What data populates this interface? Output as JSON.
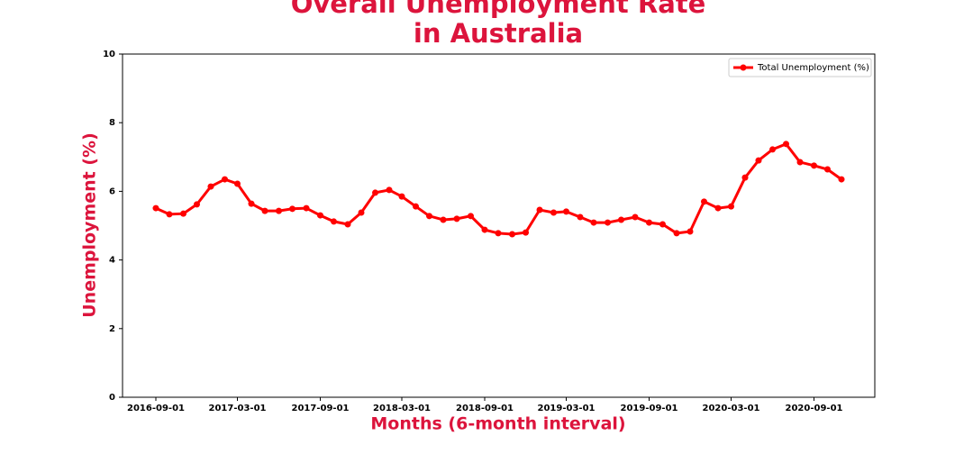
{
  "chart_data": {
    "type": "line",
    "title": "Overall Unemployment Rate in Australia",
    "x_label": "Months (6-month interval)",
    "y_label": "Unemployment (%)",
    "x": [
      "2016-09-01",
      "2016-10-01",
      "2016-11-01",
      "2016-12-01",
      "2017-01-01",
      "2017-02-01",
      "2017-03-01",
      "2017-04-01",
      "2017-05-01",
      "2017-06-01",
      "2017-07-01",
      "2017-08-01",
      "2017-09-01",
      "2017-10-01",
      "2017-11-01",
      "2017-12-01",
      "2018-01-01",
      "2018-02-01",
      "2018-03-01",
      "2018-04-01",
      "2018-05-01",
      "2018-06-01",
      "2018-07-01",
      "2018-08-01",
      "2018-09-01",
      "2018-10-01",
      "2018-11-01",
      "2018-12-01",
      "2019-01-01",
      "2019-02-01",
      "2019-03-01",
      "2019-04-01",
      "2019-05-01",
      "2019-06-01",
      "2019-07-01",
      "2019-08-01",
      "2019-09-01",
      "2019-10-01",
      "2019-11-01",
      "2019-12-01",
      "2020-01-01",
      "2020-02-01",
      "2020-03-01",
      "2020-04-01",
      "2020-05-01",
      "2020-06-01",
      "2020-07-01",
      "2020-08-01",
      "2020-09-01",
      "2020-10-01",
      "2020-11-01"
    ],
    "series": [
      {
        "name": "Total Unemployment (%)",
        "color": "#ff0000",
        "values": [
          5.51,
          5.33,
          5.35,
          5.62,
          6.14,
          6.35,
          6.22,
          5.64,
          5.43,
          5.43,
          5.49,
          5.51,
          5.3,
          5.12,
          5.04,
          5.38,
          5.96,
          6.04,
          5.85,
          5.56,
          5.28,
          5.17,
          5.2,
          5.28,
          4.88,
          4.78,
          4.75,
          4.8,
          5.46,
          5.38,
          5.41,
          5.25,
          5.09,
          5.09,
          5.17,
          5.25,
          5.09,
          5.04,
          4.78,
          4.83,
          5.7,
          5.51,
          5.56,
          6.4,
          6.9,
          7.22,
          7.38,
          6.85,
          6.75,
          6.64,
          6.35
        ]
      }
    ],
    "xlim": [
      "2016-06-19",
      "2021-01-14"
    ],
    "xticks": [
      "2016-09-01",
      "2017-03-01",
      "2017-09-01",
      "2018-03-01",
      "2018-09-01",
      "2019-03-01",
      "2019-09-01",
      "2020-03-01",
      "2020-09-01"
    ],
    "ylim": [
      0,
      10
    ],
    "yticks": [
      0,
      2,
      4,
      6,
      8,
      10
    ],
    "legend": "upper right",
    "grid": false
  }
}
